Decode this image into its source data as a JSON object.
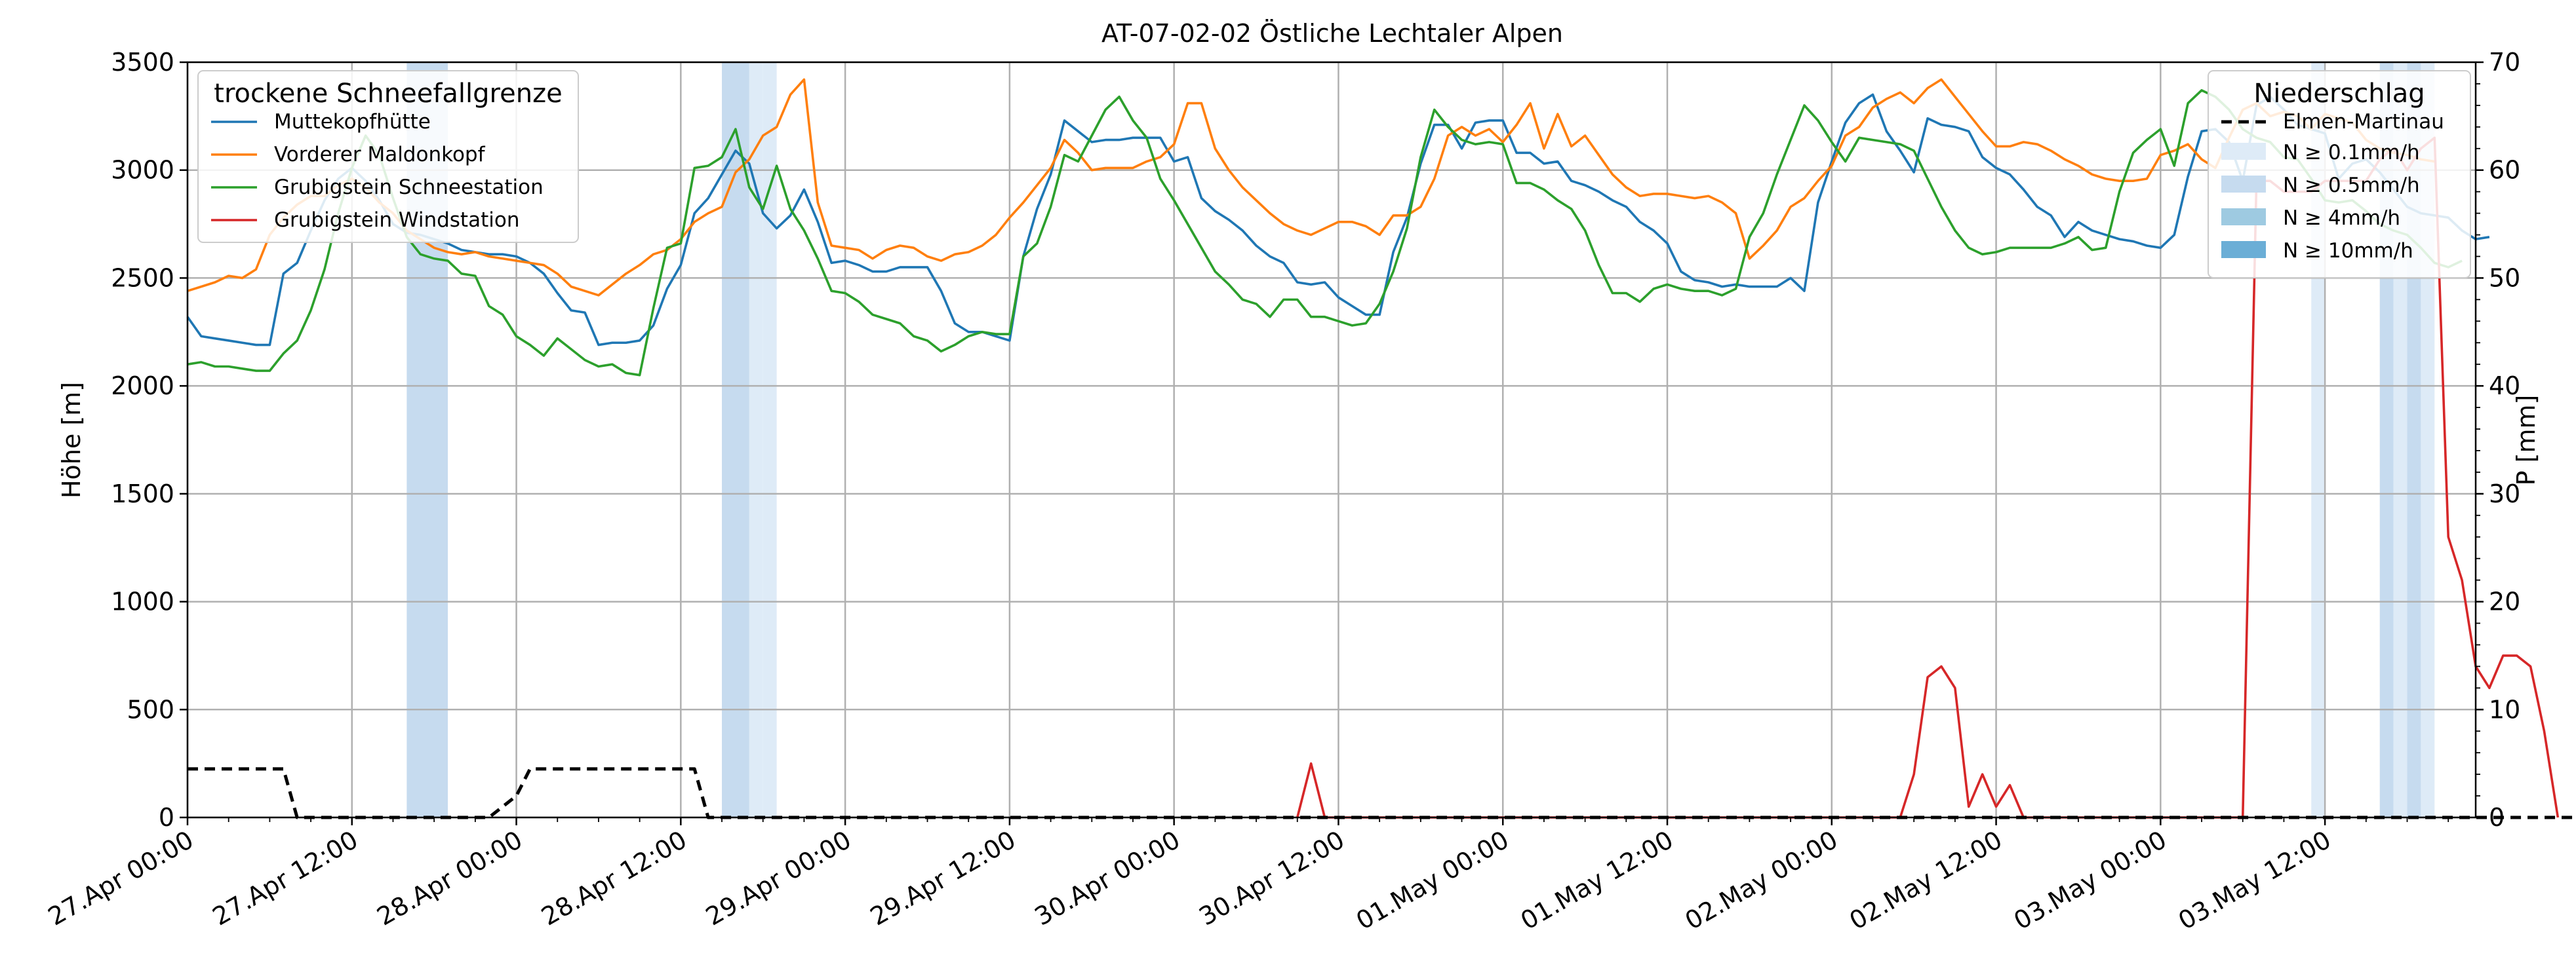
{
  "chart_data": {
    "type": "line",
    "title": "AT-07-02-02 Östliche Lechtaler Alpen",
    "ylabel": "Höhe [m]",
    "ylabel_right": "P [mm]",
    "xlabel": "",
    "ylim": [
      0,
      3500
    ],
    "ylim_right": [
      0,
      70
    ],
    "xlim_hours": [
      0,
      167
    ],
    "yticks": [
      "0",
      "500",
      "1000",
      "1500",
      "2000",
      "2500",
      "3000",
      "3500"
    ],
    "yticks_right": [
      "0",
      "10",
      "20",
      "30",
      "40",
      "50",
      "60",
      "70"
    ],
    "xticks": [
      "27.Apr 00:00",
      "27.Apr 12:00",
      "28.Apr 00:00",
      "28.Apr 12:00",
      "29.Apr 00:00",
      "29.Apr 12:00",
      "30.Apr 00:00",
      "30.Apr 12:00",
      "01.May 00:00",
      "01.May 12:00",
      "02.May 00:00",
      "02.May 12:00",
      "03.May 00:00",
      "03.May 12:00"
    ],
    "grid": true,
    "legend_position": "top-left",
    "legend_title": "trockene Schneefallgrenze",
    "legend2_position": "top-right",
    "legend2_title": "Niederschlag",
    "series": [
      {
        "name": "Muttekopfhütte",
        "color": "#1f77b4",
        "values": [
          2320,
          2230,
          2220,
          2210,
          2200,
          2190,
          2190,
          2520,
          2570,
          2720,
          2860,
          2960,
          3010,
          2950,
          2860,
          2750,
          2710,
          2700,
          2680,
          2660,
          2630,
          2620,
          2610,
          2610,
          2600,
          2570,
          2520,
          2430,
          2350,
          2340,
          2190,
          2200,
          2200,
          2210,
          2280,
          2450,
          2560,
          2800,
          2870,
          2980,
          3090,
          3030,
          2800,
          2730,
          2790,
          2910,
          2760,
          2570,
          2580,
          2560,
          2530,
          2530,
          2550,
          2550,
          2550,
          2440,
          2290,
          2250,
          2250,
          2230,
          2210,
          2600,
          2820,
          2980,
          3230,
          3180,
          3130,
          3140,
          3140,
          3150,
          3150,
          3150,
          3040,
          3060,
          2870,
          2810,
          2770,
          2720,
          2650,
          2600,
          2570,
          2480,
          2470,
          2480,
          2410,
          2370,
          2330,
          2330,
          2620,
          2780,
          3030,
          3210,
          3210,
          3100,
          3220,
          3230,
          3230,
          3080,
          3080,
          3030,
          3040,
          2950,
          2930,
          2900,
          2860,
          2830,
          2760,
          2720,
          2660,
          2530,
          2490,
          2480,
          2460,
          2470,
          2460,
          2460,
          2460,
          2500,
          2440,
          2850,
          3040,
          3220,
          3310,
          3350,
          3180,
          3090,
          2990,
          3240,
          3210,
          3200,
          3180,
          3060,
          3010,
          2980,
          2910,
          2830,
          2790,
          2690,
          2760,
          2720,
          2700,
          2680,
          2670,
          2650,
          2640,
          2700,
          2970,
          3180,
          3190,
          3130,
          2950,
          3300,
          3340,
          3280,
          3210,
          3190,
          3170,
          2960,
          3030,
          3050,
          2990,
          2910,
          2830,
          2800,
          2790,
          2780,
          2720,
          2680,
          2690
        ]
      },
      {
        "name": "Vorderer Maldonkopf",
        "color": "#ff7f0e",
        "values": [
          2440,
          2460,
          2480,
          2510,
          2500,
          2540,
          2700,
          2780,
          2840,
          2880,
          2880,
          2930,
          2960,
          2920,
          2850,
          2800,
          2720,
          2680,
          2640,
          2620,
          2610,
          2620,
          2600,
          2590,
          2580,
          2570,
          2560,
          2520,
          2460,
          2440,
          2420,
          2470,
          2520,
          2560,
          2610,
          2630,
          2680,
          2760,
          2800,
          2830,
          2990,
          3050,
          3160,
          3200,
          3350,
          3420,
          2850,
          2650,
          2640,
          2630,
          2590,
          2630,
          2650,
          2640,
          2600,
          2580,
          2610,
          2620,
          2650,
          2700,
          2780,
          2850,
          2930,
          3010,
          3140,
          3080,
          3000,
          3010,
          3010,
          3010,
          3040,
          3060,
          3120,
          3310,
          3310,
          3100,
          3000,
          2920,
          2860,
          2800,
          2750,
          2720,
          2700,
          2730,
          2760,
          2760,
          2740,
          2700,
          2790,
          2790,
          2830,
          2960,
          3160,
          3200,
          3160,
          3190,
          3130,
          3210,
          3310,
          3100,
          3260,
          3110,
          3160,
          3070,
          2980,
          2920,
          2880,
          2890,
          2890,
          2880,
          2870,
          2880,
          2850,
          2800,
          2590,
          2650,
          2720,
          2830,
          2870,
          2950,
          3020,
          3160,
          3200,
          3290,
          3330,
          3360,
          3310,
          3380,
          3420,
          3340,
          3260,
          3180,
          3110,
          3110,
          3130,
          3120,
          3090,
          3050,
          3020,
          2980,
          2960,
          2950,
          2950,
          2960,
          3070,
          3090,
          3120,
          3050,
          3010,
          3150,
          3280,
          3310,
          3250,
          3270,
          3250,
          3190,
          3260,
          3240,
          3220,
          3140,
          3100,
          3080,
          3070,
          3050,
          3040
        ]
      },
      {
        "name": "Grubigstein Schneestation",
        "color": "#2ca02c",
        "values": [
          2100,
          2110,
          2090,
          2090,
          2080,
          2070,
          2070,
          2150,
          2210,
          2350,
          2540,
          2800,
          3010,
          3160,
          3070,
          2870,
          2690,
          2610,
          2590,
          2580,
          2520,
          2510,
          2370,
          2330,
          2230,
          2190,
          2140,
          2220,
          2170,
          2120,
          2090,
          2100,
          2060,
          2050,
          2360,
          2640,
          2660,
          3010,
          3020,
          3060,
          3190,
          2920,
          2820,
          3020,
          2820,
          2720,
          2590,
          2440,
          2430,
          2390,
          2330,
          2310,
          2290,
          2230,
          2210,
          2160,
          2190,
          2230,
          2250,
          2240,
          2240,
          2600,
          2660,
          2830,
          3070,
          3040,
          3160,
          3280,
          3340,
          3230,
          3150,
          2960,
          2860,
          2750,
          2640,
          2530,
          2470,
          2400,
          2380,
          2320,
          2400,
          2400,
          2320,
          2320,
          2300,
          2280,
          2290,
          2380,
          2530,
          2730,
          3060,
          3280,
          3200,
          3140,
          3120,
          3130,
          3120,
          2940,
          2940,
          2910,
          2860,
          2820,
          2720,
          2560,
          2430,
          2430,
          2390,
          2450,
          2470,
          2450,
          2440,
          2440,
          2420,
          2450,
          2690,
          2800,
          2980,
          3140,
          3300,
          3230,
          3130,
          3040,
          3150,
          3140,
          3130,
          3120,
          3090,
          2960,
          2830,
          2720,
          2640,
          2610,
          2620,
          2640,
          2640,
          2640,
          2640,
          2660,
          2690,
          2630,
          2640,
          2900,
          3080,
          3140,
          3190,
          3020,
          3310,
          3370,
          3340,
          3280,
          3190,
          3150,
          3130,
          3060,
          3050,
          2960,
          2860,
          2850,
          2860,
          2810,
          2750,
          2720,
          2700,
          2640,
          2570,
          2550,
          2580
        ]
      },
      {
        "name": "Grubigstein Windstation",
        "color": "#d62728",
        "x0": 81,
        "values_mm": [
          0,
          5,
          0,
          0,
          0,
          0,
          0,
          0,
          0,
          0,
          0,
          0,
          0,
          0,
          0,
          0,
          0,
          0,
          0,
          0,
          0,
          0,
          0,
          0,
          0,
          0,
          0,
          0,
          0,
          0,
          0,
          0,
          0,
          0,
          0,
          0,
          0,
          0,
          0,
          0,
          0,
          0,
          0,
          0,
          0,
          4,
          13,
          14,
          12,
          1,
          4,
          1,
          3,
          0,
          0,
          0,
          0,
          0,
          0,
          0,
          0,
          0,
          0,
          0,
          0,
          0,
          0,
          0,
          0,
          0,
          59,
          59,
          58,
          58,
          58,
          59,
          59,
          59,
          59,
          61,
          62,
          60,
          62,
          63,
          26,
          22,
          14,
          12,
          15,
          15,
          14,
          8,
          0
        ]
      },
      {
        "name": "Elmen-Martinau",
        "color": "#000000",
        "dashed": true,
        "values_mm": [
          4.5,
          4.5,
          4.5,
          4.5,
          4.5,
          4.5,
          4.5,
          4.5,
          0,
          0,
          0,
          0,
          0,
          0,
          0,
          0,
          0,
          0,
          0,
          0,
          0,
          0,
          0,
          1,
          2,
          4.5,
          4.5,
          4.5,
          4.5,
          4.5,
          4.5,
          4.5,
          4.5,
          4.5,
          4.5,
          4.5,
          4.5,
          4.5,
          0,
          0,
          0,
          0,
          0,
          0,
          0,
          0,
          0,
          0,
          0,
          0,
          0,
          0,
          0,
          0,
          0,
          0,
          0,
          0,
          0,
          0,
          0,
          0,
          0,
          0,
          0,
          0,
          0,
          0,
          0,
          0,
          0,
          0,
          0,
          0,
          0,
          0,
          0,
          0,
          0,
          0,
          0,
          0,
          0,
          0,
          0,
          0,
          0,
          0,
          0,
          0,
          0,
          0,
          0,
          0,
          0,
          0,
          0,
          0,
          0,
          0,
          0,
          0,
          0,
          0,
          0,
          0,
          0,
          0,
          0,
          0,
          0,
          0,
          0,
          0,
          0,
          0,
          0,
          0,
          0,
          0,
          0,
          0,
          0,
          0,
          0,
          0,
          0,
          0,
          0,
          0,
          0,
          0,
          0,
          0,
          0,
          0,
          0,
          0,
          0,
          0,
          0,
          0,
          0,
          0,
          0,
          0,
          0,
          0,
          0,
          0,
          0,
          0,
          0,
          0,
          0,
          0,
          0,
          0,
          0,
          0,
          0,
          0,
          0,
          0,
          0,
          0,
          0,
          0,
          0,
          0,
          0,
          0,
          0,
          0,
          0,
          0
        ]
      }
    ],
    "precip_legend": [
      "N ≥ 0.1mm/h",
      "N ≥ 0.5mm/h",
      "N ≥ 4mm/h",
      "N ≥ 10mm/h"
    ],
    "precip_colors": [
      "#deebf7",
      "#c6dbef",
      "#9ecae1",
      "#6baed6"
    ],
    "precip_bands": [
      {
        "start": 16,
        "end": 19,
        "level": 1
      },
      {
        "start": 39,
        "end": 41,
        "level": 1
      },
      {
        "start": 41,
        "end": 42,
        "level": 0
      },
      {
        "start": 42,
        "end": 43,
        "level": 0
      },
      {
        "start": 155,
        "end": 156,
        "level": 0
      },
      {
        "start": 160,
        "end": 161,
        "level": 1
      },
      {
        "start": 161,
        "end": 162,
        "level": 0
      },
      {
        "start": 162,
        "end": 163,
        "level": 1
      },
      {
        "start": 163,
        "end": 164,
        "level": 0
      }
    ]
  }
}
